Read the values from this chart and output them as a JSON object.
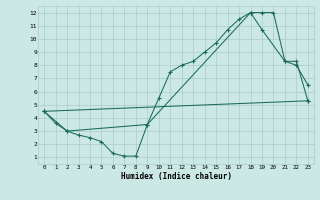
{
  "xlabel": "Humidex (Indice chaleur)",
  "bg_color": "#cce8e4",
  "grid_color": "#aaccc8",
  "line_color": "#1a6b5a",
  "line1_x": [
    0,
    1,
    2,
    3,
    4,
    5,
    6,
    7,
    8,
    9,
    10,
    11,
    12,
    13,
    14,
    15,
    16,
    17,
    18,
    19,
    20,
    21,
    22,
    23
  ],
  "line1_y": [
    4.5,
    3.6,
    3.0,
    2.7,
    2.5,
    2.2,
    1.3,
    1.1,
    1.1,
    3.5,
    5.5,
    7.5,
    8.0,
    8.3,
    9.0,
    9.7,
    10.7,
    11.5,
    12.0,
    12.0,
    12.0,
    8.3,
    8.0,
    6.5
  ],
  "line2_x": [
    0,
    2,
    9,
    18,
    19,
    21,
    22,
    23
  ],
  "line2_y": [
    4.5,
    3.0,
    3.5,
    12.0,
    10.7,
    8.3,
    8.3,
    5.3
  ],
  "line3_x": [
    0,
    23
  ],
  "line3_y": [
    4.5,
    5.3
  ],
  "xlim": [
    -0.5,
    23.5
  ],
  "ylim": [
    0.5,
    12.5
  ],
  "yticks": [
    1,
    2,
    3,
    4,
    5,
    6,
    7,
    8,
    9,
    10,
    11,
    12
  ],
  "xticks": [
    0,
    1,
    2,
    3,
    4,
    5,
    6,
    7,
    8,
    9,
    10,
    11,
    12,
    13,
    14,
    15,
    16,
    17,
    18,
    19,
    20,
    21,
    22,
    23
  ]
}
